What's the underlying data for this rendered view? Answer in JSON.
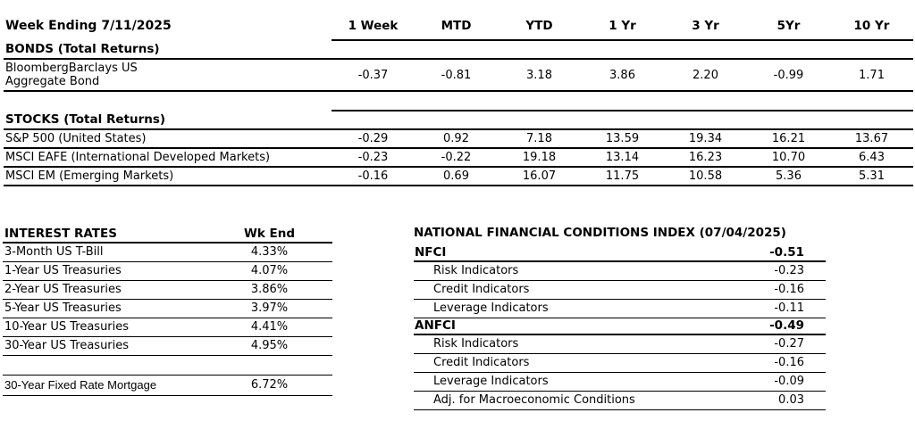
{
  "page": {
    "background": "#ffffff",
    "text_color": "#000000",
    "line_color": "#000000"
  },
  "performance_table": {
    "title": "Week Ending 7/11/2025",
    "columns": [
      "1 Week",
      "MTD",
      "YTD",
      "1 Yr",
      "3 Yr",
      "5Yr",
      "10 Yr"
    ],
    "sections": [
      {
        "heading": "BONDS (Total Returns)",
        "rows": [
          {
            "label_line1": "BloombergBarclays US",
            "label_line2": "Aggregate Bond",
            "values": [
              "-0.37",
              "-0.81",
              "3.18",
              "3.86",
              "2.20",
              "-0.99",
              "1.71"
            ]
          }
        ]
      },
      {
        "heading": "STOCKS (Total Returns)",
        "rows": [
          {
            "label": "S&P 500 (United States)",
            "values": [
              "-0.29",
              "0.92",
              "7.18",
              "13.59",
              "19.34",
              "16.21",
              "13.67"
            ]
          },
          {
            "label": "MSCI EAFE (International Developed Markets)",
            "values": [
              "-0.23",
              "-0.22",
              "19.18",
              "13.14",
              "16.23",
              "10.70",
              "6.43"
            ]
          },
          {
            "label": "MSCI EM (Emerging Markets)",
            "values": [
              "-0.16",
              "0.69",
              "16.07",
              "11.75",
              "10.58",
              "5.36",
              "5.31"
            ]
          }
        ]
      }
    ]
  },
  "interest_rates_table": {
    "title": "INTEREST RATES",
    "value_header": "Wk End",
    "rows": [
      {
        "label": "3-Month US T-Bill",
        "value": "4.33%"
      },
      {
        "label": "1-Year US Treasuries",
        "value": "4.07%"
      },
      {
        "label": "2-Year US Treasuries",
        "value": "3.86%"
      },
      {
        "label": "5-Year US Treasuries",
        "value": "3.97%"
      },
      {
        "label": "10-Year US Treasuries",
        "value": "4.41%"
      },
      {
        "label": "30-Year US Treasuries",
        "value": "4.95%"
      }
    ],
    "mortgage_row": {
      "label": "30-Year Fixed Rate Mortgage",
      "value": "6.72%"
    }
  },
  "nfci_table": {
    "title": "NATIONAL FINANCIAL CONDITIONS INDEX (07/04/2025)",
    "groups": [
      {
        "label": "NFCI",
        "value": "-0.51",
        "sub_rows": [
          {
            "label": "Risk Indicators",
            "value": "-0.23"
          },
          {
            "label": "Credit Indicators",
            "value": "-0.16"
          },
          {
            "label": "Leverage Indicators",
            "value": "-0.11"
          }
        ]
      },
      {
        "label": "ANFCI",
        "value": "-0.49",
        "sub_rows": [
          {
            "label": "Risk Indicators",
            "value": "-0.27"
          },
          {
            "label": "Credit Indicators",
            "value": "-0.16"
          },
          {
            "label": "Leverage Indicators",
            "value": "-0.09"
          },
          {
            "label": "Adj. for Macroeconomic Conditions",
            "value": "0.03"
          }
        ]
      }
    ]
  }
}
